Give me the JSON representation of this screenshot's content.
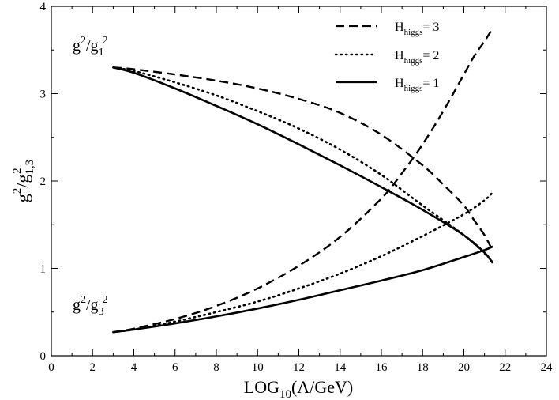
{
  "chart_data": {
    "type": "line",
    "xlabel": {
      "main": "LOG",
      "sub": "10",
      "tail": "(Λ/GeV)"
    },
    "ylabel": {
      "g": "g",
      "p1": "2",
      "slash": "/g",
      "p2": "2",
      "sub": "1,3"
    },
    "xlim": [
      0,
      24
    ],
    "ylim": [
      0,
      4
    ],
    "xticks": [
      0,
      2,
      4,
      6,
      8,
      10,
      12,
      14,
      16,
      18,
      20,
      22,
      24
    ],
    "yticks": [
      0,
      1,
      2,
      3,
      4
    ],
    "grid": false,
    "legend_position": "top-right",
    "legend": [
      {
        "style": "dashed",
        "base": "H",
        "sub": "higgs",
        "tail": "= 3"
      },
      {
        "style": "dotted",
        "base": "H",
        "sub": "higgs",
        "tail": "= 2"
      },
      {
        "style": "solid",
        "base": "H",
        "sub": "higgs",
        "tail": "= 1"
      }
    ],
    "annotations": [
      {
        "id": "g2g1",
        "g": "g",
        "p1": "2",
        "mid": "/g",
        "sub": "1",
        "p2": "2"
      },
      {
        "id": "g2g3",
        "g": "g",
        "p1": "2",
        "mid": "/g",
        "sub": "3",
        "p2": "2"
      }
    ],
    "series": [
      {
        "group": "g2^2/g1^2",
        "higgs": 3,
        "style": "dashed",
        "x": [
          3,
          4,
          6,
          8,
          10,
          12,
          14,
          16,
          18,
          19,
          20,
          20.5,
          21,
          21.4
        ],
        "y": [
          3.3,
          3.28,
          3.22,
          3.15,
          3.06,
          2.94,
          2.78,
          2.53,
          2.18,
          1.96,
          1.72,
          1.55,
          1.38,
          1.2
        ]
      },
      {
        "group": "g2^2/g1^2",
        "higgs": 2,
        "style": "dotted",
        "x": [
          3,
          4,
          6,
          8,
          10,
          12,
          14,
          16,
          18,
          20,
          21,
          21.4
        ],
        "y": [
          3.3,
          3.26,
          3.13,
          2.98,
          2.8,
          2.6,
          2.36,
          2.07,
          1.72,
          1.38,
          1.17,
          1.07
        ]
      },
      {
        "group": "g2^2/g1^2",
        "higgs": 1,
        "style": "solid",
        "x": [
          3,
          4,
          6,
          8,
          10,
          12,
          14,
          16,
          18,
          20,
          21,
          21.4
        ],
        "y": [
          3.3,
          3.24,
          3.06,
          2.86,
          2.65,
          2.42,
          2.18,
          1.93,
          1.67,
          1.38,
          1.18,
          1.06
        ]
      },
      {
        "group": "g2^2/g3^2",
        "higgs": 3,
        "style": "dashed",
        "x": [
          3,
          4,
          6,
          8,
          10,
          12,
          14,
          16,
          17,
          18,
          19,
          20,
          20.5,
          21,
          21.4
        ],
        "y": [
          0.27,
          0.31,
          0.42,
          0.57,
          0.77,
          1.03,
          1.36,
          1.8,
          2.09,
          2.42,
          2.8,
          3.22,
          3.43,
          3.6,
          3.75
        ]
      },
      {
        "group": "g2^2/g3^2",
        "higgs": 2,
        "style": "dotted",
        "x": [
          3,
          4,
          6,
          8,
          10,
          12,
          14,
          16,
          18,
          20,
          21,
          21.4
        ],
        "y": [
          0.27,
          0.3,
          0.39,
          0.5,
          0.62,
          0.77,
          0.94,
          1.14,
          1.37,
          1.62,
          1.78,
          1.87
        ]
      },
      {
        "group": "g2^2/g3^2",
        "higgs": 1,
        "style": "solid",
        "x": [
          3,
          4,
          6,
          8,
          10,
          12,
          14,
          16,
          18,
          20,
          21,
          21.4
        ],
        "y": [
          0.27,
          0.3,
          0.37,
          0.45,
          0.54,
          0.64,
          0.75,
          0.86,
          0.98,
          1.13,
          1.21,
          1.25
        ]
      }
    ]
  }
}
